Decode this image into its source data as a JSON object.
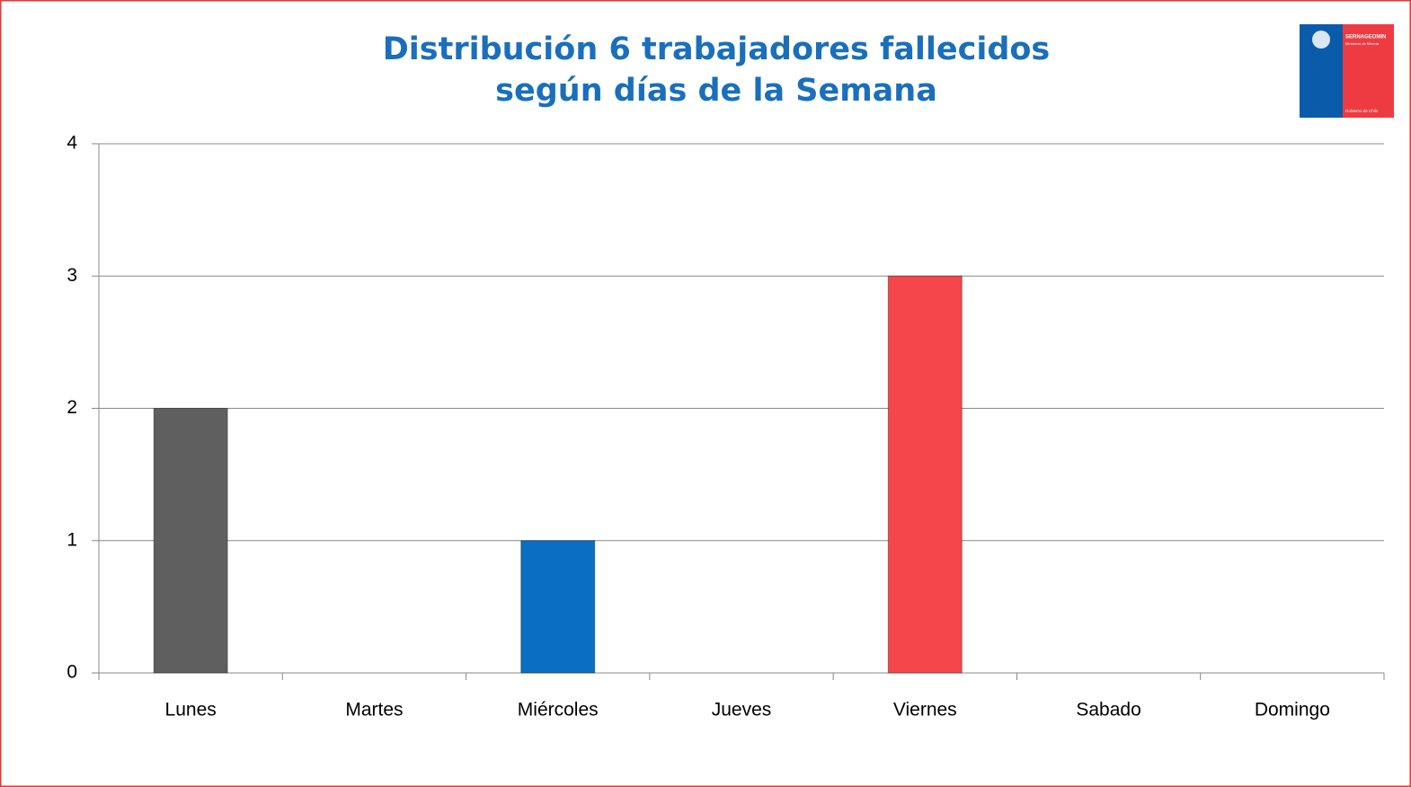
{
  "chart_data": {
    "type": "bar",
    "title": [
      "Distribución 6 trabajadores fallecidos",
      "según días de la Semana"
    ],
    "categories": [
      "Lunes",
      "Martes",
      "Miércoles",
      "Jueves",
      "Viernes",
      "Sabado",
      "Domingo"
    ],
    "values": [
      2,
      0,
      1,
      0,
      3,
      0,
      0
    ],
    "colors": [
      "#5f5f5f",
      null,
      "#0a6fc2",
      null,
      "#f4464b",
      null,
      null
    ],
    "ylim": [
      0,
      4
    ],
    "yticks": [
      0,
      1,
      2,
      3,
      4
    ],
    "grid": true
  },
  "logo": {
    "name": "SERNAGEOMIN",
    "ministry": "Ministerio de Minería",
    "government": "Gobierno de Chile"
  }
}
